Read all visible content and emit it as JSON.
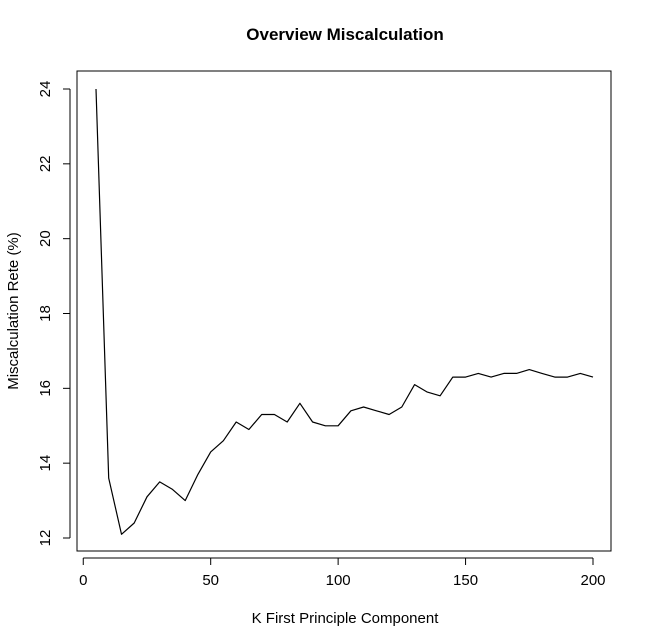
{
  "chart_data": {
    "type": "line",
    "title": "Overview Miscalculation",
    "xlabel": "K First Principle Component",
    "ylabel": "Miscalculation Rete (%)",
    "xlim": [
      5,
      200
    ],
    "ylim": [
      12,
      24
    ],
    "xticks": [
      0,
      50,
      100,
      150,
      200
    ],
    "yticks": [
      12,
      14,
      16,
      18,
      20,
      22,
      24
    ],
    "grid": false,
    "line_color": "#000000",
    "series": [
      {
        "x": [
          5,
          10,
          15,
          20,
          25,
          30,
          35,
          40,
          45,
          50,
          55,
          60,
          65,
          70,
          75,
          80,
          85,
          90,
          95,
          100,
          105,
          110,
          115,
          120,
          125,
          130,
          135,
          140,
          145,
          150,
          155,
          160,
          165,
          170,
          175,
          180,
          185,
          190,
          195,
          200
        ],
        "values": [
          24.0,
          13.6,
          12.1,
          12.4,
          13.1,
          13.5,
          13.3,
          13.0,
          13.7,
          14.3,
          14.6,
          15.1,
          14.9,
          15.3,
          15.3,
          15.1,
          15.6,
          15.1,
          15.0,
          15.0,
          15.4,
          15.5,
          15.4,
          15.3,
          15.5,
          16.1,
          15.9,
          15.8,
          16.3,
          16.3,
          16.4,
          16.3,
          16.4,
          16.4,
          16.5,
          16.4,
          16.3,
          16.3,
          16.4,
          16.3
        ]
      }
    ]
  }
}
